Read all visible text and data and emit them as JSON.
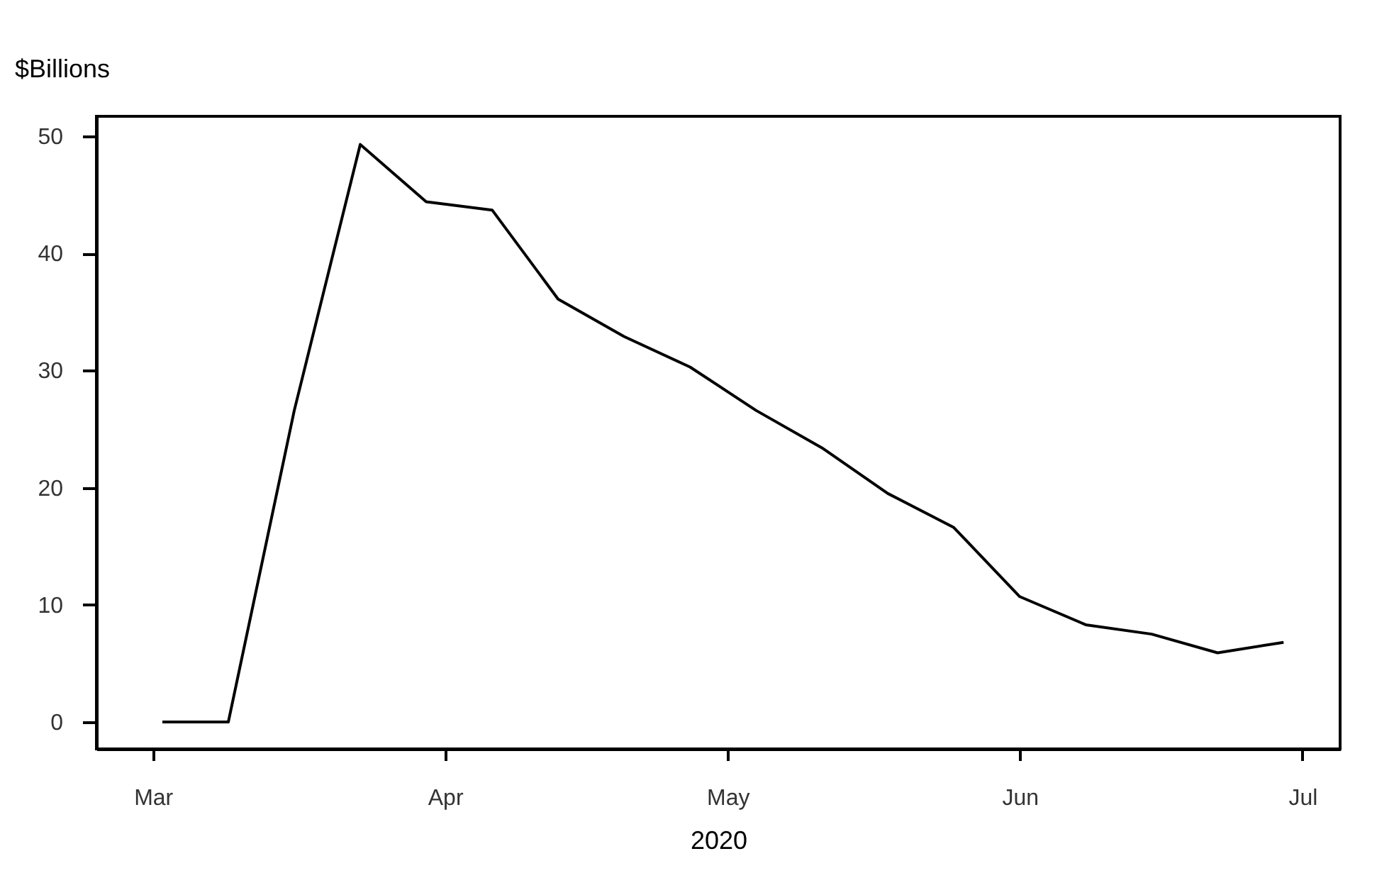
{
  "chart_data": {
    "type": "line",
    "ylabel": "$Billions",
    "xlabel": "2020",
    "x": [
      "2020-03-02",
      "2020-03-09",
      "2020-03-16",
      "2020-03-23",
      "2020-03-30",
      "2020-04-06",
      "2020-04-13",
      "2020-04-20",
      "2020-04-27",
      "2020-05-04",
      "2020-05-11",
      "2020-05-18",
      "2020-05-25",
      "2020-06-01",
      "2020-06-08",
      "2020-06-15",
      "2020-06-22",
      "2020-06-29"
    ],
    "series": [
      {
        "color": "#000000",
        "values": [
          0,
          0,
          26.6,
          49.3,
          44.4,
          43.7,
          36.1,
          32.9,
          30.3,
          26.6,
          23.4,
          19.5,
          16.6,
          10.7,
          8.3,
          7.5,
          5.9,
          6.8
        ]
      }
    ],
    "xlim": [
      "2020-02-24",
      "2020-07-05"
    ],
    "xticks": [
      {
        "value": "2020-03-01",
        "label": "Mar"
      },
      {
        "value": "2020-04-01",
        "label": "Apr"
      },
      {
        "value": "2020-05-01",
        "label": "May"
      },
      {
        "value": "2020-06-01",
        "label": "Jun"
      },
      {
        "value": "2020-07-01",
        "label": "Jul"
      }
    ],
    "ylim": [
      -2.3,
      51.7
    ],
    "yticks": [
      0,
      10,
      20,
      30,
      40,
      50
    ],
    "grid": false,
    "marker": "none",
    "line_style": "solid"
  }
}
